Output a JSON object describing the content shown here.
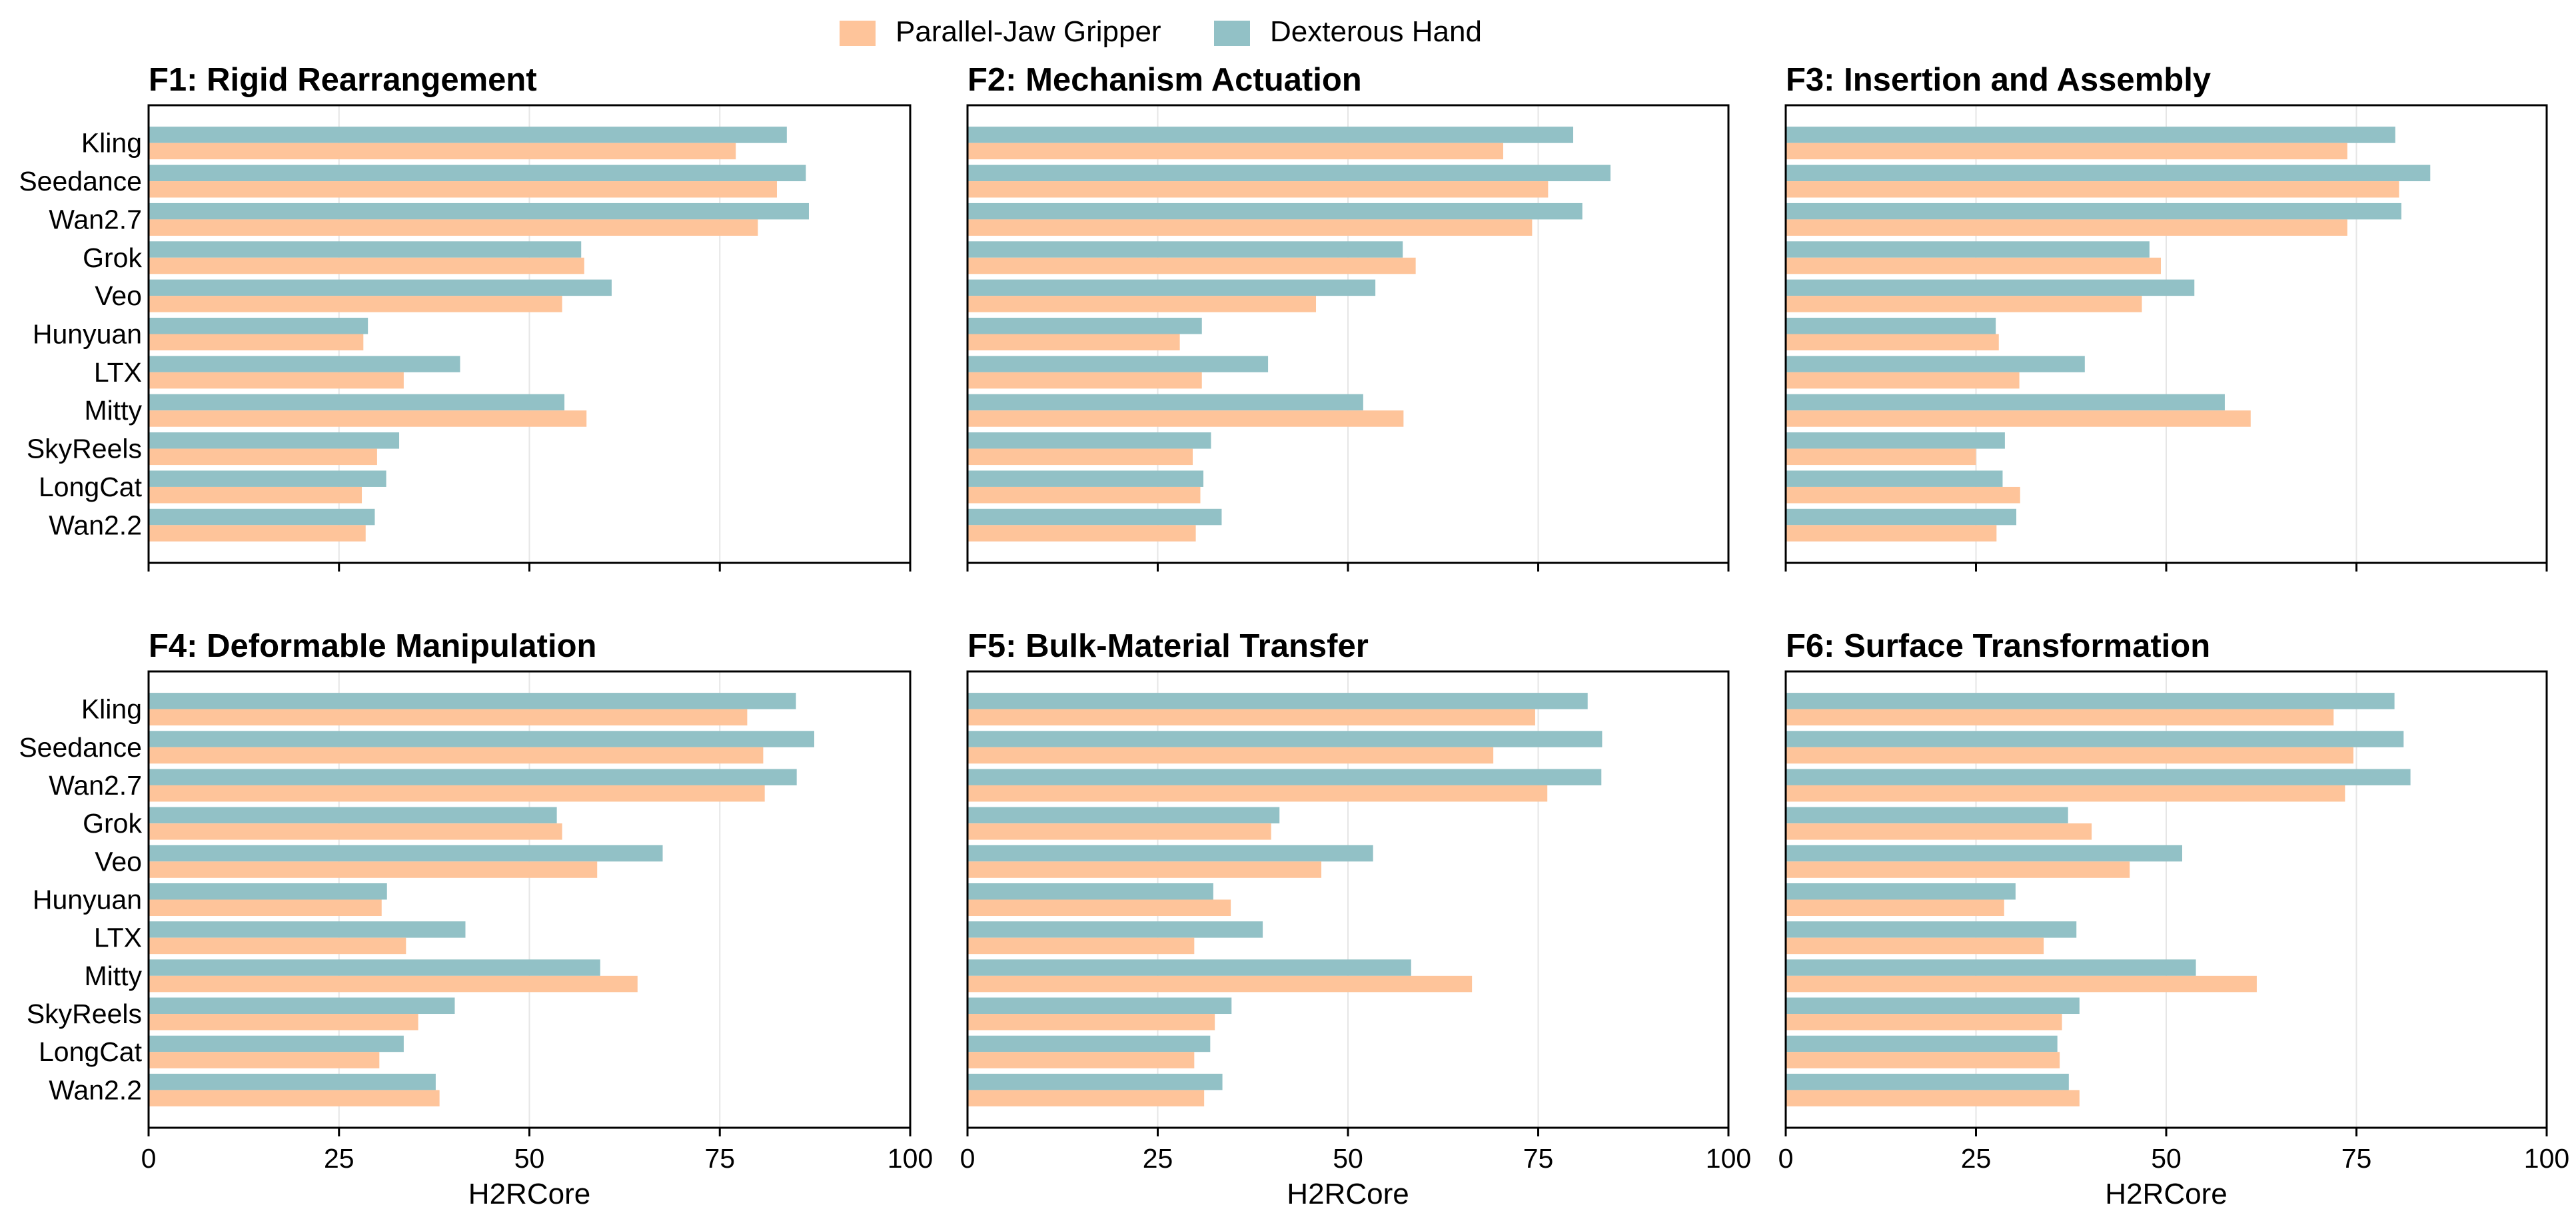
{
  "legend": {
    "position": "top-center",
    "items": [
      {
        "label": "Parallel-Jaw Gripper",
        "color": "#fec49a"
      },
      {
        "label": "Dexterous Hand",
        "color": "#92c1c6"
      }
    ]
  },
  "colors": {
    "gripper": "#fec49a",
    "hand": "#92c1c6",
    "grid": "#e6e6e6",
    "axis": "#000000"
  },
  "chart_data": [
    {
      "type": "bar",
      "orientation": "horizontal",
      "title": "F1: Rigid Rearrangement",
      "xlabel": "",
      "xlim": [
        0,
        100
      ],
      "xticks": [
        "0",
        "25",
        "50",
        "75",
        "100"
      ],
      "show_xtick_labels": false,
      "show_categories": true,
      "grid": "vertical",
      "categories": [
        "Kling",
        "Seedance",
        "Wan2.7",
        "Grok",
        "Veo",
        "Hunyuan",
        "LTX",
        "Mitty",
        "SkyReels",
        "LongCat",
        "Wan2.2"
      ],
      "series": [
        {
          "name": "Parallel-Jaw Gripper",
          "values": [
            77.1,
            82.5,
            80.0,
            57.2,
            54.3,
            28.2,
            33.5,
            57.5,
            30.0,
            28.0,
            28.5
          ]
        },
        {
          "name": "Dexterous Hand",
          "values": [
            83.8,
            86.3,
            86.7,
            56.8,
            60.8,
            28.8,
            40.9,
            54.6,
            32.9,
            31.2,
            29.7
          ]
        }
      ]
    },
    {
      "type": "bar",
      "orientation": "horizontal",
      "title": "F2: Mechanism Actuation",
      "xlabel": "",
      "xlim": [
        0,
        100
      ],
      "xticks": [
        "0",
        "25",
        "50",
        "75",
        "100"
      ],
      "show_xtick_labels": false,
      "show_categories": false,
      "grid": "vertical",
      "categories": [
        "Kling",
        "Seedance",
        "Wan2.7",
        "Grok",
        "Veo",
        "Hunyuan",
        "LTX",
        "Mitty",
        "SkyReels",
        "LongCat",
        "Wan2.2"
      ],
      "series": [
        {
          "name": "Parallel-Jaw Gripper",
          "values": [
            70.4,
            76.3,
            74.2,
            58.9,
            45.8,
            27.9,
            30.8,
            57.3,
            29.6,
            30.6,
            30.0
          ]
        },
        {
          "name": "Dexterous Hand",
          "values": [
            79.6,
            84.5,
            80.8,
            57.2,
            53.6,
            30.8,
            39.5,
            52.0,
            32.0,
            31.0,
            33.4
          ]
        }
      ]
    },
    {
      "type": "bar",
      "orientation": "horizontal",
      "title": "F3: Insertion and Assembly",
      "xlabel": "",
      "xlim": [
        0,
        100
      ],
      "xticks": [
        "0",
        "25",
        "50",
        "75",
        "100"
      ],
      "show_xtick_labels": false,
      "show_categories": false,
      "grid": "vertical",
      "categories": [
        "Kling",
        "Seedance",
        "Wan2.7",
        "Grok",
        "Veo",
        "Hunyuan",
        "LTX",
        "Mitty",
        "SkyReels",
        "LongCat",
        "Wan2.2"
      ],
      "series": [
        {
          "name": "Parallel-Jaw Gripper",
          "values": [
            73.8,
            80.6,
            73.8,
            49.3,
            46.8,
            28.0,
            30.7,
            61.1,
            25.0,
            30.8,
            27.7
          ]
        },
        {
          "name": "Dexterous Hand",
          "values": [
            80.1,
            84.7,
            80.9,
            47.8,
            53.7,
            27.6,
            39.3,
            57.7,
            28.8,
            28.5,
            30.3
          ]
        }
      ]
    },
    {
      "type": "bar",
      "orientation": "horizontal",
      "title": "F4: Deformable Manipulation",
      "xlabel": "H2RCore",
      "xlim": [
        0,
        100
      ],
      "xticks": [
        "0",
        "25",
        "50",
        "75",
        "100"
      ],
      "show_xtick_labels": true,
      "show_categories": true,
      "grid": "vertical",
      "categories": [
        "Kling",
        "Seedance",
        "Wan2.7",
        "Grok",
        "Veo",
        "Hunyuan",
        "LTX",
        "Mitty",
        "SkyReels",
        "LongCat",
        "Wan2.2"
      ],
      "series": [
        {
          "name": "Parallel-Jaw Gripper",
          "values": [
            78.6,
            80.7,
            80.9,
            54.3,
            58.9,
            30.6,
            33.8,
            64.2,
            35.4,
            30.3,
            38.2
          ]
        },
        {
          "name": "Dexterous Hand",
          "values": [
            85.0,
            87.4,
            85.1,
            53.6,
            67.5,
            31.3,
            41.6,
            59.3,
            40.2,
            33.5,
            37.7
          ]
        }
      ]
    },
    {
      "type": "bar",
      "orientation": "horizontal",
      "title": "F5: Bulk-Material Transfer",
      "xlabel": "H2RCore",
      "xlim": [
        0,
        100
      ],
      "xticks": [
        "0",
        "25",
        "50",
        "75",
        "100"
      ],
      "show_xtick_labels": true,
      "show_categories": false,
      "grid": "vertical",
      "categories": [
        "Kling",
        "Seedance",
        "Wan2.7",
        "Grok",
        "Veo",
        "Hunyuan",
        "LTX",
        "Mitty",
        "SkyReels",
        "LongCat",
        "Wan2.2"
      ],
      "series": [
        {
          "name": "Parallel-Jaw Gripper",
          "values": [
            74.6,
            69.1,
            76.2,
            39.9,
            46.5,
            34.6,
            29.8,
            66.3,
            32.5,
            29.8,
            31.1
          ]
        },
        {
          "name": "Dexterous Hand",
          "values": [
            81.5,
            83.4,
            83.3,
            41.0,
            53.3,
            32.3,
            38.8,
            58.3,
            34.7,
            31.9,
            33.5
          ]
        }
      ]
    },
    {
      "type": "bar",
      "orientation": "horizontal",
      "title": "F6: Surface Transformation",
      "xlabel": "H2RCore",
      "xlim": [
        0,
        100
      ],
      "xticks": [
        "0",
        "25",
        "50",
        "75",
        "100"
      ],
      "show_xtick_labels": true,
      "show_categories": false,
      "grid": "vertical",
      "categories": [
        "Kling",
        "Seedance",
        "Wan2.7",
        "Grok",
        "Veo",
        "Hunyuan",
        "LTX",
        "Mitty",
        "SkyReels",
        "LongCat",
        "Wan2.2"
      ],
      "series": [
        {
          "name": "Parallel-Jaw Gripper",
          "values": [
            72.0,
            74.6,
            73.5,
            40.2,
            45.2,
            28.7,
            33.9,
            61.9,
            36.3,
            36.0,
            38.6
          ]
        },
        {
          "name": "Dexterous Hand",
          "values": [
            80.0,
            81.2,
            82.1,
            37.1,
            52.1,
            30.2,
            38.2,
            53.9,
            38.6,
            35.7,
            37.2
          ]
        }
      ]
    }
  ]
}
